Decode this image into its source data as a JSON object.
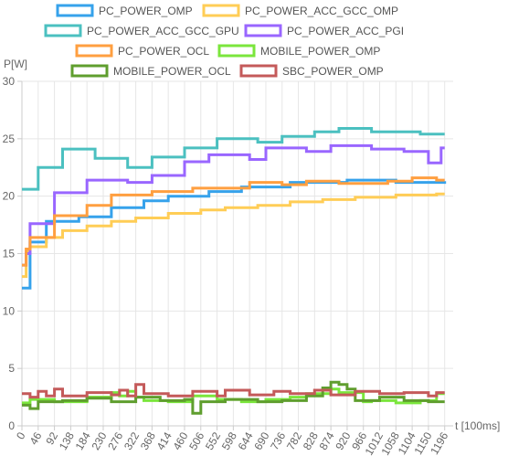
{
  "chart_data": {
    "type": "line",
    "step": true,
    "ylabel": "P[W]",
    "xlabel": "t [100ms]",
    "ylim": [
      0,
      30
    ],
    "xlim": [
      0,
      1220
    ],
    "yticks": [
      0,
      5,
      10,
      15,
      20,
      25,
      30
    ],
    "xticks": [
      0,
      46,
      92,
      138,
      184,
      230,
      276,
      322,
      368,
      414,
      460,
      506,
      552,
      598,
      644,
      690,
      736,
      782,
      828,
      874,
      920,
      966,
      1012,
      1058,
      1104,
      1150,
      1196
    ],
    "grid": true,
    "legend_position": "top",
    "series": [
      {
        "name": "PC_POWER_OMP",
        "color": "#36a2eb",
        "points": [
          [
            0,
            12
          ],
          [
            23,
            16
          ],
          [
            46,
            16
          ],
          [
            69,
            17.8
          ],
          [
            138,
            17.8
          ],
          [
            161,
            18.2
          ],
          [
            230,
            18.2
          ],
          [
            253,
            19
          ],
          [
            322,
            19
          ],
          [
            345,
            19.6
          ],
          [
            391,
            19.6
          ],
          [
            414,
            20
          ],
          [
            506,
            20
          ],
          [
            529,
            20.4
          ],
          [
            598,
            20.4
          ],
          [
            621,
            20.8
          ],
          [
            736,
            20.8
          ],
          [
            759,
            21.2
          ],
          [
            874,
            21.2
          ],
          [
            920,
            21.4
          ],
          [
            1058,
            21.2
          ],
          [
            1196,
            21.3
          ]
        ]
      },
      {
        "name": "PC_POWER_ACC_GCC_OMP",
        "color": "#ffcd56",
        "points": [
          [
            0,
            13
          ],
          [
            12,
            15.2
          ],
          [
            23,
            15.6
          ],
          [
            46,
            15.6
          ],
          [
            69,
            16.4
          ],
          [
            92,
            16.4
          ],
          [
            115,
            17
          ],
          [
            161,
            17
          ],
          [
            184,
            17.4
          ],
          [
            230,
            17.4
          ],
          [
            253,
            17.8
          ],
          [
            299,
            17.8
          ],
          [
            322,
            18.1
          ],
          [
            391,
            18.1
          ],
          [
            414,
            18.5
          ],
          [
            483,
            18.5
          ],
          [
            506,
            18.8
          ],
          [
            552,
            18.8
          ],
          [
            575,
            19
          ],
          [
            644,
            19
          ],
          [
            667,
            19.2
          ],
          [
            736,
            19.2
          ],
          [
            759,
            19.5
          ],
          [
            828,
            19.5
          ],
          [
            851,
            19.7
          ],
          [
            920,
            19.7
          ],
          [
            943,
            19.9
          ],
          [
            1035,
            19.9
          ],
          [
            1058,
            20.1
          ],
          [
            1150,
            20.1
          ],
          [
            1173,
            20.2
          ],
          [
            1196,
            20.2
          ]
        ]
      },
      {
        "name": "PC_POWER_ACC_GCC_GPU",
        "color": "#4bc0c0",
        "points": [
          [
            0,
            20.6
          ],
          [
            46,
            22.5
          ],
          [
            115,
            24.1
          ],
          [
            207,
            23.3
          ],
          [
            299,
            22.5
          ],
          [
            345,
            22.5
          ],
          [
            368,
            23.4
          ],
          [
            437,
            23.4
          ],
          [
            460,
            24.2
          ],
          [
            529,
            24.2
          ],
          [
            552,
            25
          ],
          [
            644,
            25
          ],
          [
            667,
            24.7
          ],
          [
            713,
            24.7
          ],
          [
            736,
            25.2
          ],
          [
            805,
            25.2
          ],
          [
            828,
            25.6
          ],
          [
            874,
            25.6
          ],
          [
            897,
            25.9
          ],
          [
            966,
            25.9
          ],
          [
            989,
            25.6
          ],
          [
            1104,
            25.6
          ],
          [
            1127,
            25.4
          ],
          [
            1196,
            25.4
          ]
        ]
      },
      {
        "name": "PC_POWER_ACC_PGI",
        "color": "#9966ff",
        "points": [
          [
            0,
            14
          ],
          [
            12,
            15
          ],
          [
            23,
            17.6
          ],
          [
            69,
            17.6
          ],
          [
            92,
            20.3
          ],
          [
            161,
            20.3
          ],
          [
            184,
            21.4
          ],
          [
            276,
            21.4
          ],
          [
            299,
            21.2
          ],
          [
            345,
            21.2
          ],
          [
            368,
            21.8
          ],
          [
            437,
            21.8
          ],
          [
            460,
            23
          ],
          [
            506,
            23
          ],
          [
            529,
            23.6
          ],
          [
            621,
            23.6
          ],
          [
            644,
            23.2
          ],
          [
            667,
            23.2
          ],
          [
            690,
            24.2
          ],
          [
            782,
            24.2
          ],
          [
            805,
            23.9
          ],
          [
            851,
            23.9
          ],
          [
            874,
            24.4
          ],
          [
            966,
            24.4
          ],
          [
            989,
            24.1
          ],
          [
            1058,
            24.1
          ],
          [
            1081,
            23.9
          ],
          [
            1127,
            23.9
          ],
          [
            1150,
            22.9
          ],
          [
            1173,
            22.9
          ],
          [
            1186,
            24.2
          ],
          [
            1196,
            24.2
          ]
        ]
      },
      {
        "name": "PC_POWER_OCL",
        "color": "#ff9f40",
        "points": [
          [
            0,
            14
          ],
          [
            12,
            15.4
          ],
          [
            23,
            16.4
          ],
          [
            69,
            16.4
          ],
          [
            92,
            18.3
          ],
          [
            161,
            18.3
          ],
          [
            184,
            19.2
          ],
          [
            230,
            19.2
          ],
          [
            253,
            20.1
          ],
          [
            345,
            20.1
          ],
          [
            368,
            20.4
          ],
          [
            460,
            20.4
          ],
          [
            483,
            20.7
          ],
          [
            621,
            20.7
          ],
          [
            644,
            21.2
          ],
          [
            713,
            21.2
          ],
          [
            736,
            21
          ],
          [
            782,
            21
          ],
          [
            805,
            21.3
          ],
          [
            874,
            21.3
          ],
          [
            897,
            21.1
          ],
          [
            1012,
            21.1
          ],
          [
            1035,
            21.3
          ],
          [
            1081,
            21.3
          ],
          [
            1104,
            21.6
          ],
          [
            1150,
            21.6
          ],
          [
            1173,
            21.4
          ],
          [
            1196,
            21.4
          ]
        ]
      },
      {
        "name": "MOBILE_POWER_OMP",
        "color": "#7be63c",
        "points": [
          [
            0,
            2
          ],
          [
            23,
            2.3
          ],
          [
            69,
            2.3
          ],
          [
            92,
            2.1
          ],
          [
            161,
            2.1
          ],
          [
            184,
            2.5
          ],
          [
            230,
            2.5
          ],
          [
            253,
            2.9
          ],
          [
            276,
            2.6
          ],
          [
            299,
            3
          ],
          [
            322,
            2.5
          ],
          [
            345,
            2.2
          ],
          [
            391,
            2.2
          ],
          [
            414,
            2.1
          ],
          [
            460,
            2.1
          ],
          [
            483,
            2.6
          ],
          [
            529,
            2.6
          ],
          [
            552,
            2.3
          ],
          [
            598,
            2.3
          ],
          [
            621,
            2.1
          ],
          [
            667,
            2.1
          ],
          [
            690,
            2.3
          ],
          [
            736,
            2.3
          ],
          [
            759,
            2.5
          ],
          [
            782,
            2.5
          ],
          [
            805,
            2.8
          ],
          [
            851,
            2.8
          ],
          [
            874,
            3.2
          ],
          [
            897,
            2.9
          ],
          [
            943,
            2.9
          ],
          [
            966,
            2.1
          ],
          [
            989,
            2.2
          ],
          [
            1035,
            2.2
          ],
          [
            1058,
            2
          ],
          [
            1104,
            2
          ],
          [
            1127,
            2.2
          ],
          [
            1173,
            2.8
          ],
          [
            1196,
            2.8
          ]
        ]
      },
      {
        "name": "MOBILE_POWER_OCL",
        "color": "#5f9e2e",
        "points": [
          [
            0,
            1.8
          ],
          [
            23,
            1.5
          ],
          [
            46,
            2.1
          ],
          [
            92,
            2.1
          ],
          [
            115,
            2.2
          ],
          [
            161,
            2.2
          ],
          [
            184,
            2.4
          ],
          [
            230,
            2.4
          ],
          [
            253,
            2.1
          ],
          [
            299,
            2.1
          ],
          [
            322,
            2.5
          ],
          [
            368,
            2.5
          ],
          [
            391,
            2.2
          ],
          [
            437,
            2.2
          ],
          [
            460,
            2.3
          ],
          [
            483,
            1.1
          ],
          [
            506,
            2.1
          ],
          [
            552,
            2.1
          ],
          [
            575,
            2.3
          ],
          [
            644,
            2.3
          ],
          [
            667,
            2.1
          ],
          [
            713,
            2.1
          ],
          [
            736,
            2.2
          ],
          [
            782,
            2.2
          ],
          [
            805,
            2.6
          ],
          [
            828,
            2.6
          ],
          [
            851,
            3.3
          ],
          [
            874,
            3.8
          ],
          [
            897,
            3.6
          ],
          [
            920,
            3.2
          ],
          [
            943,
            2.2
          ],
          [
            989,
            2.2
          ],
          [
            1012,
            2.5
          ],
          [
            1058,
            2.5
          ],
          [
            1081,
            2.2
          ],
          [
            1127,
            2.2
          ],
          [
            1150,
            2.1
          ],
          [
            1196,
            2.1
          ]
        ]
      },
      {
        "name": "SBC_POWER_OMP",
        "color": "#c45a5a",
        "points": [
          [
            0,
            2.8
          ],
          [
            23,
            2.5
          ],
          [
            46,
            3
          ],
          [
            69,
            2.6
          ],
          [
            92,
            3.2
          ],
          [
            115,
            2.6
          ],
          [
            161,
            2.6
          ],
          [
            184,
            2.9
          ],
          [
            230,
            2.9
          ],
          [
            253,
            2.7
          ],
          [
            276,
            3.1
          ],
          [
            299,
            2.6
          ],
          [
            322,
            3.6
          ],
          [
            345,
            2.8
          ],
          [
            391,
            2.8
          ],
          [
            414,
            2.6
          ],
          [
            460,
            2.6
          ],
          [
            483,
            3
          ],
          [
            529,
            3
          ],
          [
            552,
            2.6
          ],
          [
            575,
            3.1
          ],
          [
            621,
            3.1
          ],
          [
            644,
            2.7
          ],
          [
            690,
            2.7
          ],
          [
            713,
            3
          ],
          [
            736,
            3
          ],
          [
            759,
            2.8
          ],
          [
            805,
            2.8
          ],
          [
            828,
            3.1
          ],
          [
            874,
            2.7
          ],
          [
            920,
            2.7
          ],
          [
            943,
            3
          ],
          [
            989,
            3
          ],
          [
            1012,
            2.8
          ],
          [
            1058,
            2.8
          ],
          [
            1081,
            2.9
          ],
          [
            1127,
            2.9
          ],
          [
            1150,
            2.6
          ],
          [
            1173,
            2.9
          ],
          [
            1196,
            2.9
          ]
        ]
      }
    ]
  }
}
